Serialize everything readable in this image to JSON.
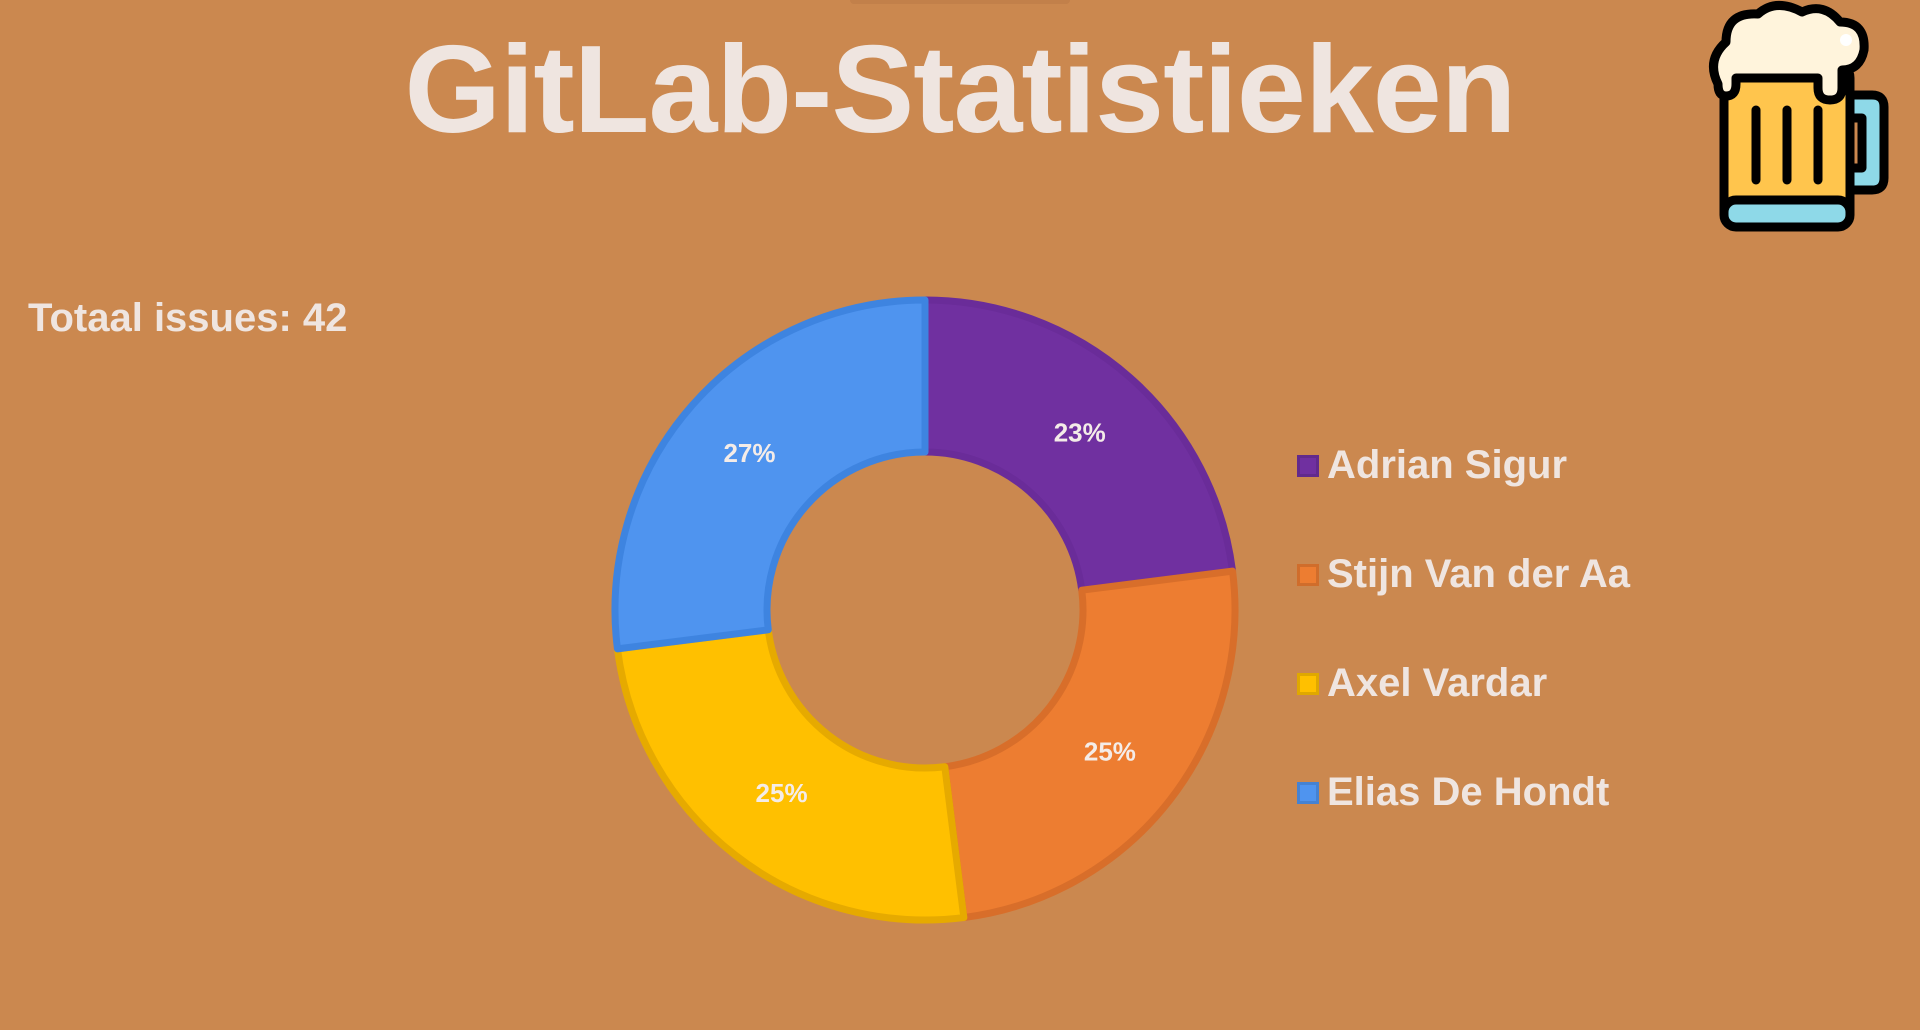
{
  "page": {
    "title": "GitLab-Statistieken",
    "total_issues_text": "Totaal issues: 42",
    "logo_icon": "beer-mug-icon",
    "background_color": "#CB884F"
  },
  "chart_data": {
    "type": "pie",
    "variant": "donut",
    "start_angle": "top, clockwise",
    "legend_position": "right",
    "labels": [
      "Adrian Sigur",
      "Stijn Van der Aa",
      "Axel Vardar",
      "Elias De Hondt"
    ],
    "values": [
      23,
      25,
      25,
      27
    ],
    "value_labels": [
      "23%",
      "25%",
      "25%",
      "27%"
    ],
    "colors": [
      "#7030A0",
      "#ED7D31",
      "#FFC000",
      "#4F94EF"
    ],
    "border_colors": [
      "#6A2C99",
      "#D86E2A",
      "#E6AA00",
      "#3E84E0"
    ]
  }
}
